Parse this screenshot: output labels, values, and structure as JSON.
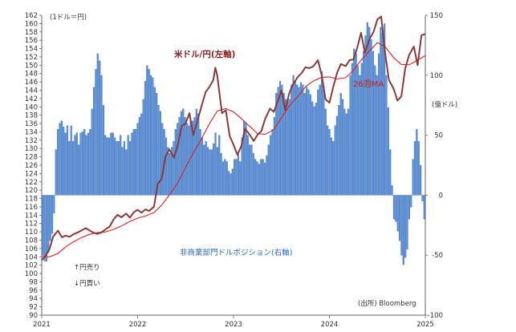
{
  "chart_data": {
    "type": "bar+line",
    "left_unit_label": "(1ドル＝円)",
    "right_unit_label": "(億ドル)",
    "source_label": "(出所) Bloomberg",
    "legend_up_label": "↑円売り",
    "legend_down_label": "↓円買い",
    "left_axis": {
      "min": 90,
      "max": 162,
      "step": 2
    },
    "right_axis": {
      "min": -100,
      "max": 150,
      "ticks": [
        150,
        100,
        50,
        0,
        -50,
        -100
      ]
    },
    "x_ticks": [
      "2021",
      "2022",
      "2023",
      "2024",
      "2025"
    ],
    "x_range": [
      2021.0,
      2025.0
    ],
    "colors": {
      "usdjpy": "#8b3a3a",
      "ma": "#dd1f1f",
      "bars": "#5b8fd6",
      "bar_edge": "#3a6db5"
    },
    "series": [
      {
        "name": "米ドル/円(左軸)",
        "axis": "left",
        "points": [
          [
            2021.0,
            103.2
          ],
          [
            2021.04,
            104.3
          ],
          [
            2021.08,
            105.8
          ],
          [
            2021.12,
            108.9
          ],
          [
            2021.17,
            110.3
          ],
          [
            2021.21,
            108.7
          ],
          [
            2021.25,
            109.1
          ],
          [
            2021.29,
            108.8
          ],
          [
            2021.33,
            109.4
          ],
          [
            2021.38,
            109.9
          ],
          [
            2021.42,
            110.4
          ],
          [
            2021.46,
            110.9
          ],
          [
            2021.5,
            110.3
          ],
          [
            2021.54,
            109.8
          ],
          [
            2021.58,
            109.5
          ],
          [
            2021.62,
            109.8
          ],
          [
            2021.67,
            110.7
          ],
          [
            2021.71,
            111.3
          ],
          [
            2021.75,
            113.0
          ],
          [
            2021.79,
            114.1
          ],
          [
            2021.83,
            113.5
          ],
          [
            2021.88,
            114.4
          ],
          [
            2021.92,
            113.4
          ],
          [
            2021.96,
            114.7
          ],
          [
            2022.0,
            115.3
          ],
          [
            2022.04,
            114.6
          ],
          [
            2022.08,
            115.4
          ],
          [
            2022.12,
            115.0
          ],
          [
            2022.17,
            116.0
          ],
          [
            2022.21,
            121.5
          ],
          [
            2022.25,
            122.7
          ],
          [
            2022.29,
            128.0
          ],
          [
            2022.33,
            129.8
          ],
          [
            2022.38,
            127.8
          ],
          [
            2022.42,
            131.0
          ],
          [
            2022.46,
            135.5
          ],
          [
            2022.5,
            136.0
          ],
          [
            2022.54,
            138.5
          ],
          [
            2022.58,
            133.2
          ],
          [
            2022.62,
            136.4
          ],
          [
            2022.67,
            140.5
          ],
          [
            2022.71,
            143.6
          ],
          [
            2022.75,
            144.8
          ],
          [
            2022.79,
            146.5
          ],
          [
            2022.81,
            149.4
          ],
          [
            2022.83,
            147.6
          ],
          [
            2022.86,
            142.0
          ],
          [
            2022.88,
            138.5
          ],
          [
            2022.92,
            139.2
          ],
          [
            2022.96,
            133.0
          ],
          [
            2023.0,
            130.9
          ],
          [
            2023.04,
            128.5
          ],
          [
            2023.08,
            130.5
          ],
          [
            2023.12,
            134.8
          ],
          [
            2023.17,
            133.3
          ],
          [
            2023.21,
            131.8
          ],
          [
            2023.25,
            133.3
          ],
          [
            2023.29,
            134.2
          ],
          [
            2023.33,
            137.1
          ],
          [
            2023.38,
            139.6
          ],
          [
            2023.42,
            138.8
          ],
          [
            2023.46,
            141.3
          ],
          [
            2023.5,
            144.0
          ],
          [
            2023.54,
            139.2
          ],
          [
            2023.58,
            143.2
          ],
          [
            2023.62,
            145.4
          ],
          [
            2023.67,
            147.2
          ],
          [
            2023.71,
            148.1
          ],
          [
            2023.75,
            149.5
          ],
          [
            2023.79,
            149.3
          ],
          [
            2023.83,
            149.7
          ],
          [
            2023.88,
            151.2
          ],
          [
            2023.92,
            147.6
          ],
          [
            2023.96,
            141.8
          ],
          [
            2024.0,
            141.0
          ],
          [
            2024.04,
            144.8
          ],
          [
            2024.08,
            148.2
          ],
          [
            2024.12,
            150.3
          ],
          [
            2024.17,
            149.8
          ],
          [
            2024.21,
            151.2
          ],
          [
            2024.25,
            151.4
          ],
          [
            2024.29,
            154.2
          ],
          [
            2024.33,
            157.8
          ],
          [
            2024.37,
            153.0
          ],
          [
            2024.42,
            156.4
          ],
          [
            2024.46,
            158.0
          ],
          [
            2024.5,
            161.0
          ],
          [
            2024.54,
            161.7
          ],
          [
            2024.58,
            153.1
          ],
          [
            2024.62,
            146.5
          ],
          [
            2024.67,
            144.3
          ],
          [
            2024.71,
            141.5
          ],
          [
            2024.75,
            142.5
          ],
          [
            2024.79,
            149.2
          ],
          [
            2024.83,
            152.4
          ],
          [
            2024.88,
            154.5
          ],
          [
            2024.92,
            150.0
          ],
          [
            2024.96,
            157.2
          ],
          [
            2025.0,
            157.5
          ]
        ]
      },
      {
        "name": "26週MA",
        "axis": "left",
        "points": [
          [
            2021.0,
            104.1
          ],
          [
            2021.08,
            104.0
          ],
          [
            2021.17,
            104.8
          ],
          [
            2021.25,
            106.4
          ],
          [
            2021.33,
            107.6
          ],
          [
            2021.42,
            108.7
          ],
          [
            2021.5,
            109.4
          ],
          [
            2021.58,
            109.8
          ],
          [
            2021.67,
            110.0
          ],
          [
            2021.75,
            110.6
          ],
          [
            2021.83,
            111.4
          ],
          [
            2021.92,
            112.5
          ],
          [
            2022.0,
            113.3
          ],
          [
            2022.08,
            113.8
          ],
          [
            2022.17,
            114.6
          ],
          [
            2022.25,
            116.4
          ],
          [
            2022.33,
            118.8
          ],
          [
            2022.42,
            121.8
          ],
          [
            2022.5,
            125.5
          ],
          [
            2022.58,
            128.9
          ],
          [
            2022.67,
            132.5
          ],
          [
            2022.75,
            136.0
          ],
          [
            2022.83,
            139.0
          ],
          [
            2022.92,
            139.6
          ],
          [
            2023.0,
            138.8
          ],
          [
            2023.08,
            137.2
          ],
          [
            2023.17,
            135.3
          ],
          [
            2023.25,
            133.6
          ],
          [
            2023.33,
            133.4
          ],
          [
            2023.42,
            134.5
          ],
          [
            2023.5,
            137.4
          ],
          [
            2023.58,
            140.2
          ],
          [
            2023.67,
            142.5
          ],
          [
            2023.75,
            144.8
          ],
          [
            2023.83,
            146.2
          ],
          [
            2023.92,
            147.1
          ],
          [
            2024.0,
            147.2
          ],
          [
            2024.08,
            146.7
          ],
          [
            2024.17,
            147.0
          ],
          [
            2024.25,
            148.8
          ],
          [
            2024.33,
            151.2
          ],
          [
            2024.42,
            153.5
          ],
          [
            2024.5,
            155.4
          ],
          [
            2024.58,
            154.5
          ],
          [
            2024.67,
            151.8
          ],
          [
            2024.75,
            150.2
          ],
          [
            2024.83,
            150.1
          ],
          [
            2024.92,
            151.2
          ],
          [
            2025.0,
            152.3
          ]
        ]
      },
      {
        "name": "非商業部門ドルポジション(右軸)",
        "axis": "right",
        "kind": "bar",
        "values": [
          -50,
          -55,
          -55,
          -48,
          -38,
          -32,
          -15,
          38,
          55,
          60,
          62,
          57,
          52,
          58,
          45,
          58,
          45,
          50,
          52,
          42,
          52,
          53,
          55,
          50,
          52,
          55,
          72,
          90,
          105,
          118,
          112,
          100,
          75,
          50,
          48,
          48,
          52,
          52,
          48,
          45,
          45,
          50,
          40,
          45,
          38,
          50,
          45,
          52,
          55,
          55,
          60,
          65,
          68,
          80,
          95,
          108,
          105,
          100,
          98,
          90,
          85,
          75,
          70,
          60,
          55,
          48,
          40,
          35,
          40,
          45,
          55,
          60,
          65,
          70,
          72,
          65,
          60,
          58,
          62,
          62,
          65,
          72,
          68,
          55,
          48,
          42,
          45,
          40,
          38,
          38,
          43,
          52,
          40,
          50,
          35,
          28,
          30,
          28,
          20,
          18,
          22,
          30,
          30,
          34,
          28,
          48,
          62,
          60,
          50,
          42,
          42,
          35,
          30,
          28,
          26,
          30,
          30,
          27,
          33,
          42,
          50,
          55,
          65,
          85,
          90,
          95,
          92,
          85,
          80,
          78,
          80,
          92,
          100,
          95,
          92,
          90,
          94,
          92,
          85,
          90,
          88,
          84,
          78,
          74,
          77,
          88,
          92,
          103,
          91,
          72,
          58,
          55,
          48,
          45,
          58,
          66,
          75,
          85,
          80,
          72,
          68,
          72,
          100,
          110,
          122,
          118,
          108,
          100,
          110,
          120,
          133,
          144,
          140,
          130,
          120,
          108,
          100,
          118,
          140,
          135,
          143,
          100,
          73,
          38,
          8,
          -20,
          -22,
          -30,
          -38,
          -50,
          -58,
          -52,
          -45,
          -20,
          -10,
          30,
          45,
          55,
          45,
          25,
          -5,
          -20
        ]
      }
    ]
  },
  "labels": {
    "usd_series": "米ドル/円(左軸)",
    "ma_series": "26週MA",
    "position_series": "非商業部門ドルポジション(右軸)"
  }
}
